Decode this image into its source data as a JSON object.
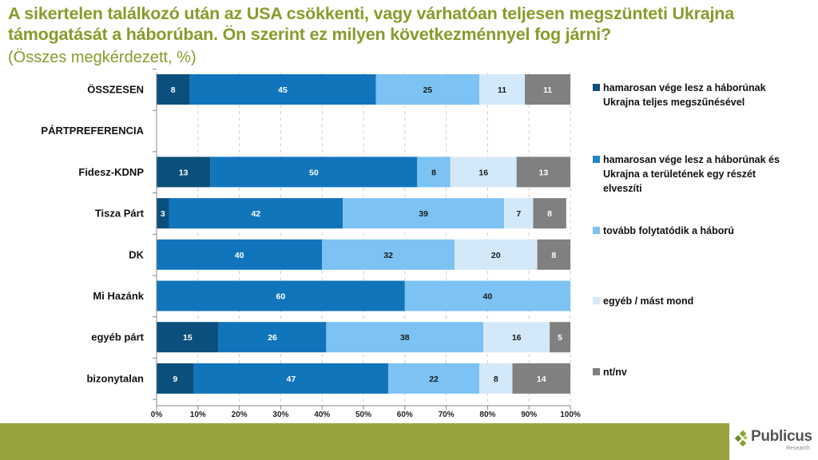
{
  "header": {
    "title": "A sikertelen találkozó után az USA csökkenti, vagy várhatóan teljesen megszünteti Ukrajna támogatását a háborúban. Ön szerint ez milyen következménnyel fog járni?",
    "subtitle": "(Összes megkérdezett, %)"
  },
  "chart_data": {
    "type": "bar",
    "orientation": "horizontal",
    "stacked": "percent",
    "title": "A sikertelen találkozó után az USA csökkenti, vagy várhatóan teljesen megszünteti Ukrajna támogatását a háborúban. Ön szerint ez milyen következménnyel fog járni?",
    "subtitle": "(Összes megkérdezett, %)",
    "xlabel": "",
    "ylabel": "",
    "xlim": [
      0,
      100
    ],
    "x_ticks": [
      "0%",
      "10%",
      "20%",
      "30%",
      "40%",
      "50%",
      "60%",
      "70%",
      "80%",
      "90%",
      "100%"
    ],
    "grid": "vertical dashed",
    "legend_position": "right",
    "categories": [
      "ÖSSZESEN",
      "PÁRTPREFERENCIA",
      "Fidesz-KDNP",
      "Tisza Párt",
      "DK",
      "Mi Hazánk",
      "egyéb párt",
      "bizonytalan"
    ],
    "series": [
      {
        "name": "hamarosan vége lesz a háborúnak Ukrajna teljes megszűnésével",
        "color": "#0b4f7c",
        "label_color": "#ffffff",
        "values": [
          8,
          null,
          13,
          3,
          0,
          0,
          15,
          9
        ]
      },
      {
        "name": "hamarosan vége lesz a háborúnak és Ukrajna a területének egy részét elveszíti",
        "color": "#1175bb",
        "label_color": "#ffffff",
        "values": [
          45,
          null,
          50,
          42,
          40,
          60,
          26,
          47
        ]
      },
      {
        "name": "tovább folytatódik a háború",
        "color": "#7cc2f3",
        "label_color": "#1a1a1a",
        "values": [
          25,
          null,
          8,
          39,
          32,
          40,
          38,
          22
        ]
      },
      {
        "name": "egyéb / mást mond",
        "color": "#d3e9fa",
        "label_color": "#1a1a1a",
        "values": [
          11,
          null,
          16,
          7,
          20,
          0,
          16,
          8
        ]
      },
      {
        "name": "nt/nv",
        "color": "#808080",
        "label_color": "#ffffff",
        "values": [
          11,
          null,
          13,
          8,
          8,
          0,
          5,
          14
        ]
      }
    ]
  },
  "legend": {
    "items": [
      {
        "label": "hamarosan vége lesz a háborúnak Ukrajna teljes megszűnésével",
        "color": "#0b4f7c"
      },
      {
        "label": "hamarosan vége lesz a háborúnak és Ukrajna a területének egy részét elveszíti",
        "color": "#1f86c8"
      },
      {
        "label": "tovább folytatódik a háború",
        "color": "#7cc2f3"
      },
      {
        "label": "egyéb / mást mond",
        "color": "#d3e9fa"
      },
      {
        "label": "nt/nv",
        "color": "#808080"
      }
    ]
  },
  "brand": {
    "name": "Publicus",
    "sub": "Research",
    "accent": "#98a23f",
    "title_color": "#8a9a2b"
  }
}
